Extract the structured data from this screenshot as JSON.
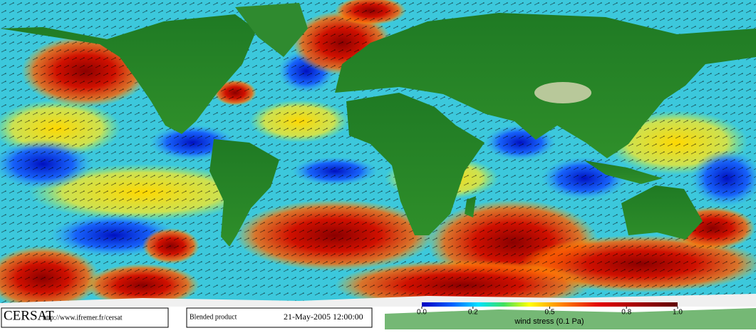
{
  "footer": {
    "logo": "CERSAT",
    "url": "http://www.ifremer.fr/cersat",
    "product": "Blended product",
    "date": "21-May-2005 12:00:00"
  },
  "colorbar": {
    "label": "wind stress (0.1 Pa)",
    "lim": [
      0,
      1
    ],
    "ticks": [
      {
        "value": 0,
        "label": "0.0"
      },
      0.2,
      0.5,
      0.8,
      {
        "value": 1,
        "label": "1.0"
      }
    ]
  }
}
